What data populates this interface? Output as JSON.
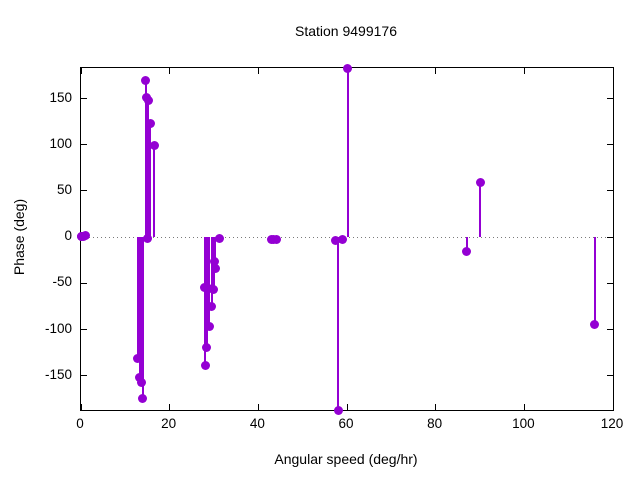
{
  "chart_data": {
    "type": "scatter",
    "style": "impulses-with-points",
    "title": "Station 9499176",
    "xlabel": "Angular speed (deg/hr)",
    "ylabel": "Phase (deg)",
    "xlim": [
      0,
      120
    ],
    "ylim": [
      -187,
      183
    ],
    "xticks": [
      0,
      20,
      40,
      60,
      80,
      100,
      120
    ],
    "yticks": [
      -150,
      -100,
      -50,
      0,
      50,
      100,
      150
    ],
    "zero_line": true,
    "grid": false,
    "legend": "none",
    "points": [
      [
        0.0,
        1
      ],
      [
        0.1,
        1
      ],
      [
        0.5,
        1
      ],
      [
        1.1,
        2
      ],
      [
        12.8,
        -131
      ],
      [
        13.2,
        -152
      ],
      [
        13.7,
        -157
      ],
      [
        13.9,
        -175
      ],
      [
        15.1,
        -1
      ],
      [
        14.6,
        170
      ],
      [
        14.8,
        151
      ],
      [
        15.2,
        148
      ],
      [
        15.6,
        123
      ],
      [
        16.5,
        99
      ],
      [
        27.9,
        -54
      ],
      [
        28.0,
        -139
      ],
      [
        28.4,
        -119
      ],
      [
        28.7,
        -56
      ],
      [
        28.9,
        -97
      ],
      [
        29.5,
        -75
      ],
      [
        29.9,
        -57
      ],
      [
        30.1,
        -26
      ],
      [
        30.3,
        -34
      ],
      [
        31.2,
        -1
      ],
      [
        42.9,
        -2
      ],
      [
        43.5,
        -3
      ],
      [
        44.1,
        -2
      ],
      [
        57.4,
        -4
      ],
      [
        58.0,
        -187
      ],
      [
        59.0,
        -2
      ],
      [
        60.2,
        183
      ],
      [
        87.0,
        -16
      ],
      [
        90.0,
        59
      ],
      [
        115.9,
        -94
      ]
    ]
  },
  "colors": {
    "series": "#9400d3",
    "frame": "#000000",
    "zero_line": "#7a7a7a",
    "background": "#ffffff",
    "text": "#000000"
  }
}
